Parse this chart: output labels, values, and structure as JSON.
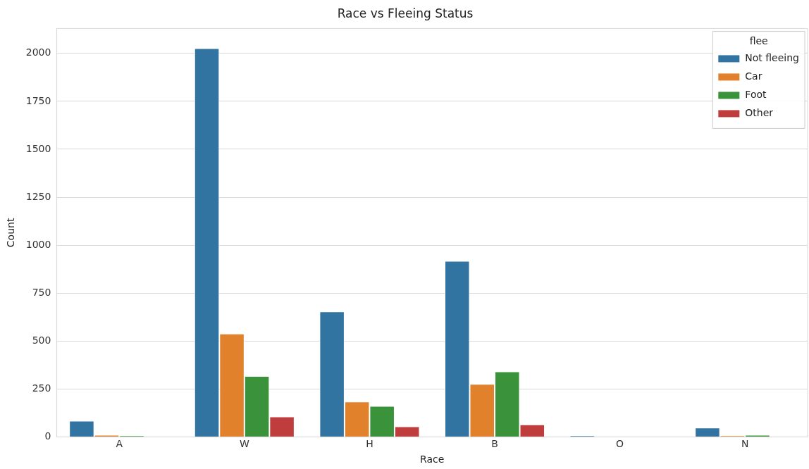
{
  "chart_data": {
    "type": "bar",
    "title": "Race vs Fleeing Status",
    "xlabel": "Race",
    "ylabel": "Count",
    "legend_title": "flee",
    "categories": [
      "A",
      "W",
      "H",
      "B",
      "O",
      "N"
    ],
    "series": [
      {
        "name": "Not fleeing",
        "color": "#3274a1",
        "values": [
          84,
          2027,
          654,
          918,
          7,
          48
        ]
      },
      {
        "name": "Car",
        "color": "#e1812c",
        "values": [
          11,
          539,
          184,
          276,
          null,
          7
        ]
      },
      {
        "name": "Foot",
        "color": "#3a923a",
        "values": [
          7,
          317,
          161,
          341,
          null,
          11
        ]
      },
      {
        "name": "Other",
        "color": "#c03d3e",
        "values": [
          null,
          106,
          55,
          65,
          null,
          null
        ]
      }
    ],
    "ylim": [
      0,
      2130
    ],
    "yticks": [
      0,
      250,
      500,
      750,
      1000,
      1250,
      1500,
      1750,
      2000
    ],
    "grid": "y",
    "legend": "top right"
  }
}
